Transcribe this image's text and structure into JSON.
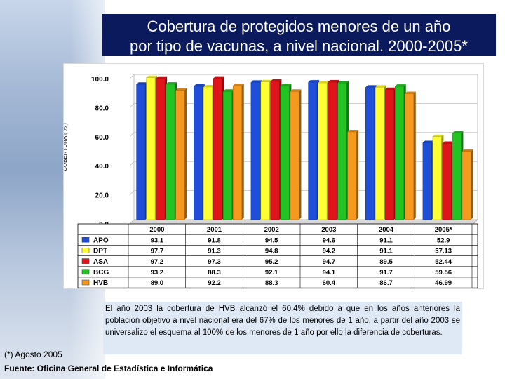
{
  "title": {
    "line1": "Cobertura de protegidos menores de un año",
    "line2": "por tipo de vacunas, a nivel nacional. 2000-2005*"
  },
  "chart_data": {
    "type": "bar",
    "title": "Cobertura de protegidos menores de un año por tipo de vacunas, a nivel nacional. 2000-2005*",
    "xlabel": "",
    "ylabel": "COBERTURA ( % )",
    "ylim": [
      0,
      100
    ],
    "y_ticks": [
      "0.0",
      "20.0",
      "40.0",
      "60.0",
      "80.0",
      "100.0"
    ],
    "grid": true,
    "categories": [
      "2000",
      "2001",
      "2002",
      "2003",
      "2004",
      "2005*"
    ],
    "series": [
      {
        "name": "APO",
        "color": "#1f4fd8",
        "values": [
          93.1,
          91.8,
          94.5,
          94.6,
          91.1,
          52.9
        ],
        "labels": [
          "93.1",
          "91.8",
          "94.5",
          "94.6",
          "91.1",
          "52.9"
        ]
      },
      {
        "name": "DPT",
        "color": "#ffff33",
        "values": [
          97.7,
          91.3,
          94.8,
          94.2,
          91.1,
          57.13
        ],
        "labels": [
          "97.7",
          "91.3",
          "94.8",
          "94.2",
          "91.1",
          "57.13"
        ]
      },
      {
        "name": "ASA",
        "color": "#e0151b",
        "values": [
          97.2,
          97.3,
          95.2,
          94.7,
          89.5,
          52.44
        ],
        "labels": [
          "97.2",
          "97.3",
          "95.2",
          "94.7",
          "89.5",
          "52.44"
        ]
      },
      {
        "name": "BCG",
        "color": "#22c322",
        "values": [
          93.2,
          88.3,
          92.1,
          94.1,
          91.7,
          59.56
        ],
        "labels": [
          "93.2",
          "88.3",
          "92.1",
          "94.1",
          "91.7",
          "59.56"
        ]
      },
      {
        "name": "HVB",
        "color": "#f59a1e",
        "values": [
          89.0,
          92.2,
          88.3,
          60.4,
          86.7,
          46.99
        ],
        "labels": [
          "89.0",
          "92.2",
          "88.3",
          "60.4",
          "86.7",
          "46.99"
        ]
      }
    ]
  },
  "note": "El año 2003 la cobertura de HVB alcanzó el 60.4% debido a que en los años anteriores la población objetivo a nivel nacional era del 67% de los menores de 1 año, a partir del año 2003 se universalizo el esquema al 100% de los menores de 1 año por ello la diferencia de coberturas.",
  "footnote": "(*) Agosto 2005",
  "source": "Fuente: Oficina General de Estadística e Informática"
}
